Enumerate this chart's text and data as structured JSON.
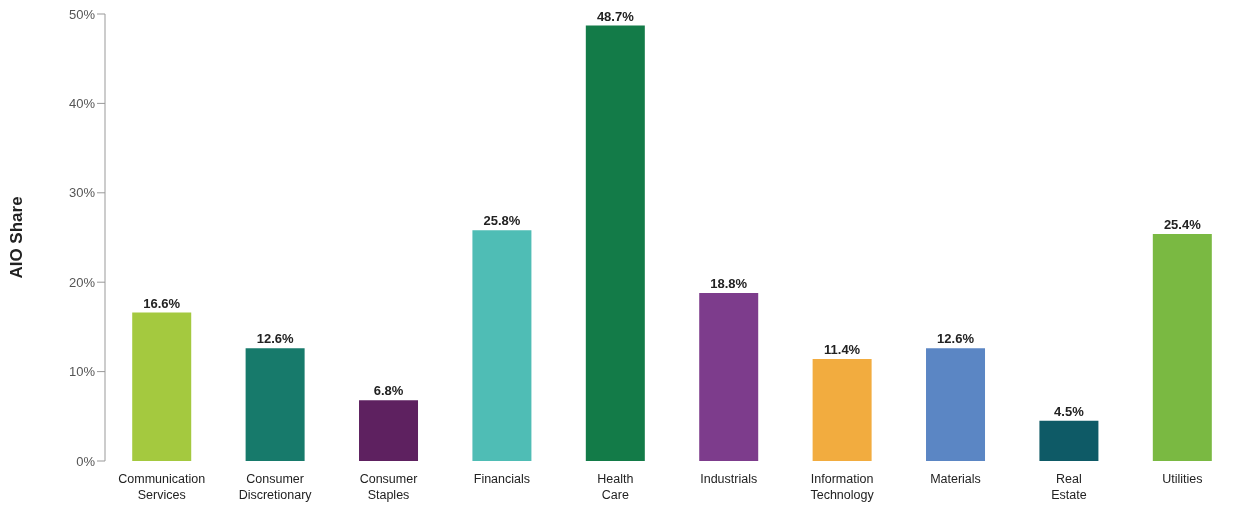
{
  "chart_data": {
    "type": "bar",
    "ylabel": "AIO Share",
    "categories": [
      "Communication Services",
      "Consumer Discretionary",
      "Consumer Staples",
      "Financials",
      "Health Care",
      "Industrials",
      "Information Technology",
      "Materials",
      "Real Estate",
      "Utilities"
    ],
    "values": [
      16.6,
      12.6,
      6.8,
      25.8,
      48.7,
      18.8,
      11.4,
      12.6,
      4.5,
      25.4
    ],
    "value_labels": [
      "16.6%",
      "12.6%",
      "6.8%",
      "25.8%",
      "48.7%",
      "18.8%",
      "11.4%",
      "12.6%",
      "4.5%",
      "25.4%"
    ],
    "colors": [
      "#a4c93f",
      "#177a6b",
      "#5e2160",
      "#4fbdb5",
      "#137b48",
      "#7d3c8c",
      "#f2ac3f",
      "#5b86c4",
      "#0e5a66",
      "#7ab942"
    ],
    "ylim": [
      0,
      50
    ],
    "yticks": [
      {
        "value": 0,
        "label": "0%"
      },
      {
        "value": 10,
        "label": "10%"
      },
      {
        "value": 20,
        "label": "20%"
      },
      {
        "value": 30,
        "label": "30%"
      },
      {
        "value": 40,
        "label": "40%"
      },
      {
        "value": 50,
        "label": "50%"
      }
    ],
    "grid": false,
    "legend": false
  }
}
